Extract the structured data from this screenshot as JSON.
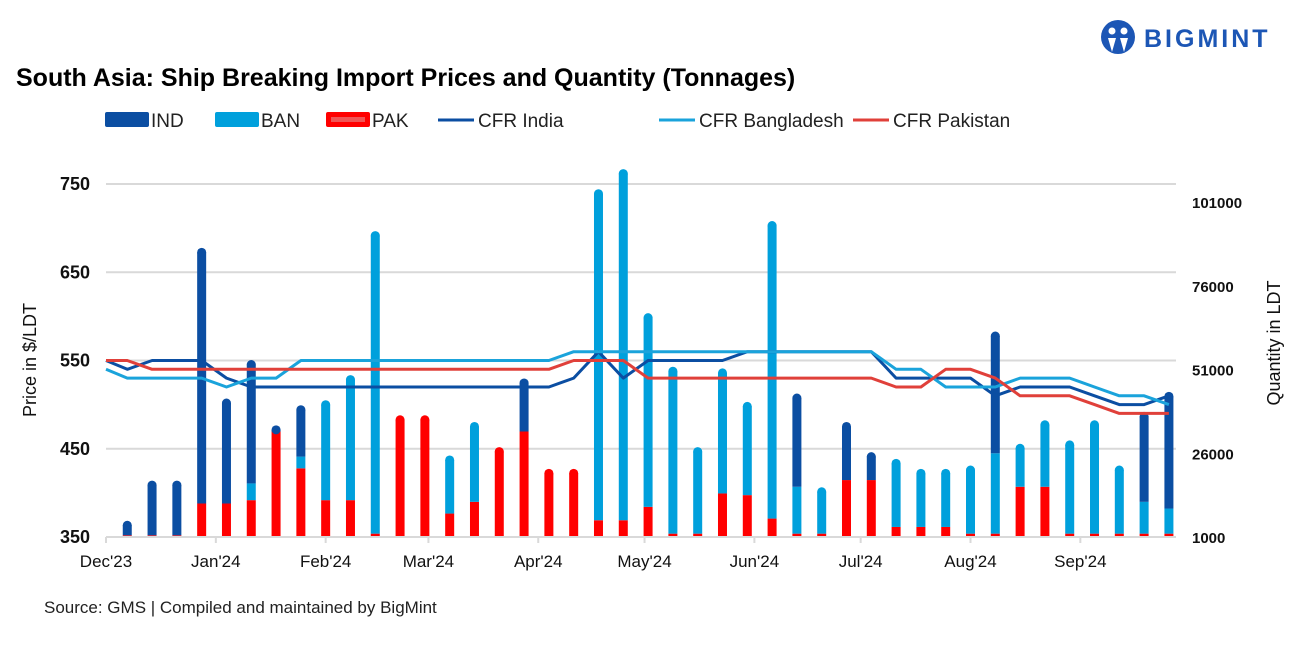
{
  "logo": {
    "text": "BIGMINT",
    "color": "#1c56b5"
  },
  "source": "Source: GMS | Compiled and maintained by BigMint",
  "chart_data": {
    "type": "bar+line",
    "title": "South Asia: Ship Breaking Import Prices and Quantity (Tonnages)",
    "ylabel": "Price in $/LDT",
    "y2label": "Quantity in LDT",
    "ylim": [
      350,
      750
    ],
    "yticks": [
      350,
      450,
      550,
      650,
      750
    ],
    "y2lim": [
      1000,
      106400
    ],
    "y2ticks": [
      1000,
      26000,
      51000,
      76000,
      101000
    ],
    "xlim": [
      "2023-12-01",
      "2024-09-28"
    ],
    "xticks": [
      {
        "date": "2023-12-01",
        "label": "Dec'23"
      },
      {
        "date": "2024-01-01",
        "label": "Jan'24"
      },
      {
        "date": "2024-02-01",
        "label": "Feb'24"
      },
      {
        "date": "2024-03-01",
        "label": "Mar'24"
      },
      {
        "date": "2024-04-01",
        "label": "Apr'24"
      },
      {
        "date": "2024-05-01",
        "label": "May'24"
      },
      {
        "date": "2024-06-01",
        "label": "Jun'24"
      },
      {
        "date": "2024-07-01",
        "label": "Jul'24"
      },
      {
        "date": "2024-08-01",
        "label": "Aug'24"
      },
      {
        "date": "2024-09-01",
        "label": "Sep'24"
      }
    ],
    "grid": true,
    "legend": "top",
    "bar_dates_start": "2023-12-07",
    "bar_interval_days": 7,
    "bar_series": [
      {
        "name": "PAK",
        "color": "#ff0000",
        "values": [
          1500,
          1500,
          1500,
          11000,
          11000,
          12000,
          32500,
          21500,
          12000,
          12000,
          2000,
          36000,
          36000,
          8000,
          11500,
          26500,
          32500,
          20000,
          20000,
          6000,
          6000,
          10000,
          2000,
          2000,
          14000,
          13500,
          6500,
          2000,
          2000,
          18000,
          18000,
          4000,
          4000,
          4000,
          2000,
          2000,
          16000,
          16000,
          2000,
          2000,
          2000,
          2000,
          2000
        ]
      },
      {
        "name": "BAN",
        "color": "#00a0dc",
        "values": [
          0,
          0,
          0,
          0,
          0,
          5000,
          0,
          3500,
          28500,
          36000,
          89000,
          0,
          0,
          16000,
          22500,
          0,
          0,
          0,
          0,
          97500,
          103500,
          56500,
          48500,
          24500,
          36000,
          26500,
          87500,
          14000,
          12500,
          0,
          0,
          19000,
          16000,
          16000,
          19000,
          24000,
          11500,
          18500,
          26500,
          32500,
          19000,
          9500,
          7500
        ]
      },
      {
        "name": "IND",
        "color": "#0b4ea2",
        "values": [
          3000,
          15000,
          15000,
          75000,
          30000,
          35500,
          500,
          14000,
          0,
          0,
          0,
          0,
          0,
          0,
          0,
          0,
          14500,
          0,
          0,
          0,
          0,
          0,
          0,
          0,
          0,
          0,
          0,
          26500,
          0,
          16000,
          7000,
          0,
          0,
          0,
          0,
          35000,
          0,
          0,
          0,
          0,
          0,
          25500,
          33500
        ]
      }
    ],
    "line_dates_start": "2023-12-01",
    "line_series": [
      {
        "name": "CFR India",
        "color": "#0b4ea2",
        "values": [
          550,
          540,
          550,
          550,
          550,
          530,
          520,
          520,
          520,
          520,
          520,
          520,
          520,
          520,
          520,
          520,
          520,
          520,
          520,
          530,
          560,
          530,
          550,
          550,
          550,
          550,
          560,
          560,
          560,
          560,
          560,
          560,
          530,
          530,
          530,
          530,
          510,
          520,
          520,
          520,
          510,
          500,
          500,
          510
        ]
      },
      {
        "name": "CFR Bangladesh",
        "color": "#1aa3db",
        "values": [
          540,
          530,
          530,
          530,
          530,
          520,
          530,
          530,
          550,
          550,
          550,
          550,
          550,
          550,
          550,
          550,
          550,
          550,
          550,
          560,
          560,
          560,
          560,
          560,
          560,
          560,
          560,
          560,
          560,
          560,
          560,
          560,
          540,
          540,
          520,
          520,
          520,
          530,
          530,
          530,
          520,
          510,
          510,
          500
        ]
      },
      {
        "name": "CFR Pakistan",
        "color": "#e0403a",
        "values": [
          550,
          550,
          540,
          540,
          540,
          540,
          540,
          540,
          540,
          540,
          540,
          540,
          540,
          540,
          540,
          540,
          540,
          540,
          540,
          550,
          550,
          550,
          530,
          530,
          530,
          530,
          530,
          530,
          530,
          530,
          530,
          530,
          520,
          520,
          540,
          540,
          530,
          510,
          510,
          510,
          500,
          490,
          490,
          490
        ]
      }
    ]
  }
}
